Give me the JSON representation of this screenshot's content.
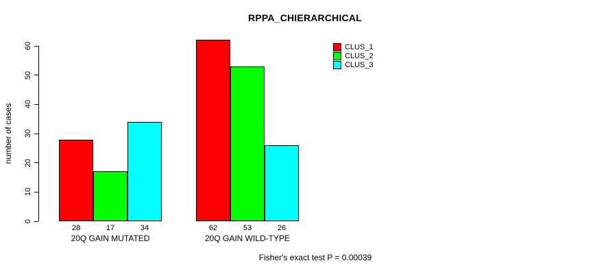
{
  "chart_data": {
    "type": "bar",
    "title": "RPPA_CHIERARCHICAL",
    "ylabel": "number of cases",
    "xlabel": "",
    "categories": [
      "20Q GAIN MUTATED",
      "20Q GAIN WILD-TYPE"
    ],
    "series": [
      {
        "name": "CLUS_1",
        "color": "#ff0000",
        "values": [
          28,
          62
        ]
      },
      {
        "name": "CLUS_2",
        "color": "#00ff00",
        "values": [
          17,
          53
        ]
      },
      {
        "name": "CLUS_3",
        "color": "#00ffff",
        "values": [
          34,
          26
        ]
      }
    ],
    "bar_value_labels": [
      [
        28,
        17,
        34
      ],
      [
        62,
        53,
        26
      ]
    ],
    "yticks": [
      0,
      10,
      20,
      30,
      40,
      50,
      60
    ],
    "ylim": [
      0,
      62
    ],
    "grid": false,
    "legend_position": "top-right",
    "annotation": "Fisher's exact test P = 0.00039",
    "bar_border_color": "#000000",
    "background_color": "#ffffff"
  }
}
